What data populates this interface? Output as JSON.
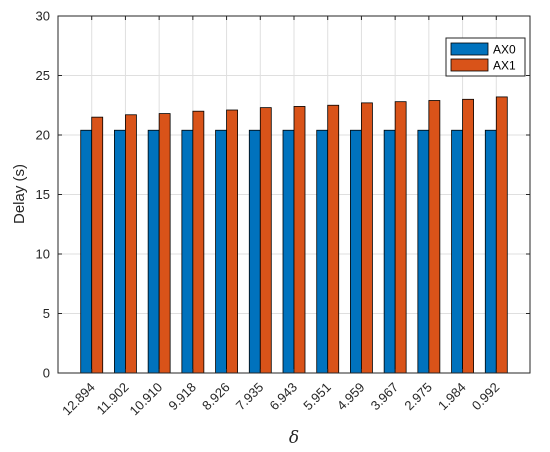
{
  "chart_data": {
    "type": "bar",
    "title": "",
    "xlabel": "δ",
    "ylabel": "Delay (s)",
    "ylim": [
      0,
      30
    ],
    "yticks": [
      0,
      5,
      10,
      15,
      20,
      25,
      30
    ],
    "grid": true,
    "legend_position": "top-right",
    "categories": [
      "12.894",
      "11.902",
      "10.910",
      "9.918",
      "8.926",
      "7.935",
      "6.943",
      "5.951",
      "4.959",
      "3.967",
      "2.975",
      "1.984",
      "0.992"
    ],
    "series": [
      {
        "name": "AX0",
        "color": "#0072BD",
        "values": [
          20.4,
          20.4,
          20.4,
          20.4,
          20.4,
          20.4,
          20.4,
          20.4,
          20.4,
          20.4,
          20.4,
          20.4,
          20.4
        ]
      },
      {
        "name": "AX1",
        "color": "#D95319",
        "values": [
          21.5,
          21.7,
          21.8,
          22.0,
          22.1,
          22.3,
          22.4,
          22.5,
          22.7,
          22.8,
          22.9,
          23.0,
          23.2
        ]
      }
    ]
  }
}
